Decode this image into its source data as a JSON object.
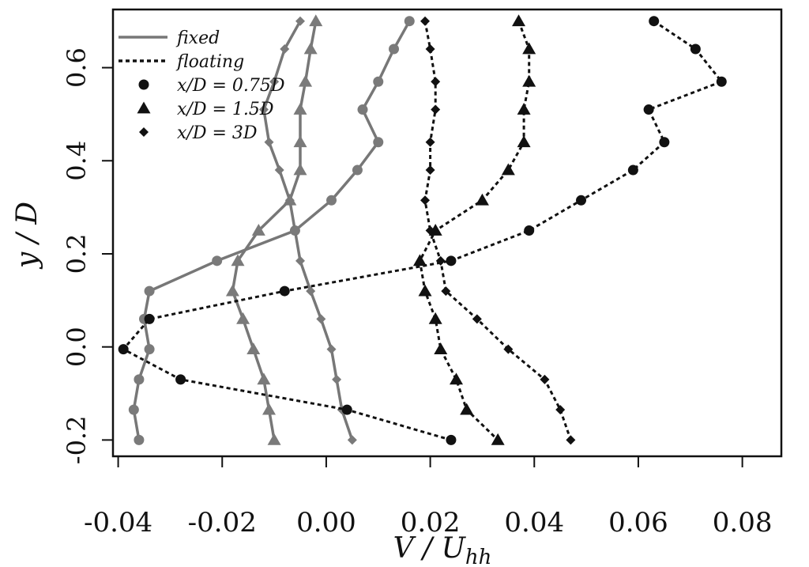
{
  "chart_data": {
    "type": "line",
    "xlabel": "V / U",
    "xlabel_sub": "hh",
    "ylabel": "y / D",
    "xlim": [
      -0.041,
      0.0875
    ],
    "ylim": [
      -0.235,
      0.725
    ],
    "x_ticks": [
      -0.04,
      -0.02,
      0.0,
      0.02,
      0.04,
      0.06,
      0.08
    ],
    "x_tick_labels": [
      "-0.04",
      "-0.02",
      "0.00",
      "0.02",
      "0.04",
      "0.06",
      "0.08"
    ],
    "y_ticks": [
      -0.2,
      0.0,
      0.2,
      0.4,
      0.6
    ],
    "y_tick_labels": [
      "-0.2",
      "0.0",
      "0.2",
      "0.4",
      "0.6"
    ],
    "grid": false,
    "legend_position": "top-left",
    "legend": [
      {
        "label": "fixed",
        "kind": "line",
        "style": "solid",
        "color": "#777777"
      },
      {
        "label": "floating",
        "kind": "line",
        "style": "dotted",
        "color": "#111111"
      },
      {
        "label": "x/D = 0.75D",
        "kind": "marker",
        "marker": "circle"
      },
      {
        "label": "x/D = 1.5D",
        "kind": "marker",
        "marker": "triangle"
      },
      {
        "label": "x/D = 3D",
        "kind": "marker",
        "marker": "diamond"
      }
    ],
    "series": [
      {
        "case": "fixed",
        "position": "x/D = 0.75D",
        "marker": "circle",
        "style": "solid",
        "color": "#777777",
        "points": [
          [
            0.016,
            0.7
          ],
          [
            0.013,
            0.64
          ],
          [
            0.01,
            0.57
          ],
          [
            0.007,
            0.51
          ],
          [
            0.01,
            0.44
          ],
          [
            0.006,
            0.38
          ],
          [
            0.001,
            0.315
          ],
          [
            -0.006,
            0.25
          ],
          [
            -0.021,
            0.185
          ],
          [
            -0.034,
            0.12
          ],
          [
            -0.035,
            0.06
          ],
          [
            -0.034,
            -0.005
          ],
          [
            -0.036,
            -0.07
          ],
          [
            -0.037,
            -0.135
          ],
          [
            -0.036,
            -0.2
          ]
        ]
      },
      {
        "case": "fixed",
        "position": "x/D = 1.5D",
        "marker": "triangle",
        "style": "solid",
        "color": "#777777",
        "points": [
          [
            -0.002,
            0.7
          ],
          [
            -0.003,
            0.64
          ],
          [
            -0.004,
            0.57
          ],
          [
            -0.005,
            0.51
          ],
          [
            -0.005,
            0.44
          ],
          [
            -0.005,
            0.38
          ],
          [
            -0.007,
            0.315
          ],
          [
            -0.013,
            0.25
          ],
          [
            -0.017,
            0.185
          ],
          [
            -0.018,
            0.12
          ],
          [
            -0.016,
            0.06
          ],
          [
            -0.014,
            -0.005
          ],
          [
            -0.012,
            -0.07
          ],
          [
            -0.011,
            -0.135
          ],
          [
            -0.01,
            -0.2
          ]
        ]
      },
      {
        "case": "fixed",
        "position": "x/D = 3D",
        "marker": "diamond",
        "style": "solid",
        "color": "#777777",
        "points": [
          [
            -0.005,
            0.7
          ],
          [
            -0.008,
            0.64
          ],
          [
            -0.01,
            0.57
          ],
          [
            -0.012,
            0.51
          ],
          [
            -0.011,
            0.44
          ],
          [
            -0.009,
            0.38
          ],
          [
            -0.007,
            0.315
          ],
          [
            -0.006,
            0.25
          ],
          [
            -0.005,
            0.185
          ],
          [
            -0.003,
            0.12
          ],
          [
            -0.001,
            0.06
          ],
          [
            0.001,
            -0.005
          ],
          [
            0.002,
            -0.07
          ],
          [
            0.003,
            -0.135
          ],
          [
            0.005,
            -0.2
          ]
        ]
      },
      {
        "case": "floating",
        "position": "x/D = 0.75D",
        "marker": "circle",
        "style": "dotted",
        "color": "#111111",
        "points": [
          [
            0.063,
            0.7
          ],
          [
            0.071,
            0.64
          ],
          [
            0.076,
            0.57
          ],
          [
            0.062,
            0.51
          ],
          [
            0.065,
            0.44
          ],
          [
            0.059,
            0.38
          ],
          [
            0.049,
            0.315
          ],
          [
            0.039,
            0.25
          ],
          [
            0.024,
            0.185
          ],
          [
            -0.008,
            0.12
          ],
          [
            -0.034,
            0.06
          ],
          [
            -0.039,
            -0.005
          ],
          [
            -0.028,
            -0.07
          ],
          [
            0.004,
            -0.135
          ],
          [
            0.024,
            -0.2
          ]
        ]
      },
      {
        "case": "floating",
        "position": "x/D = 1.5D",
        "marker": "triangle",
        "style": "dotted",
        "color": "#111111",
        "points": [
          [
            0.037,
            0.7
          ],
          [
            0.039,
            0.64
          ],
          [
            0.039,
            0.57
          ],
          [
            0.038,
            0.51
          ],
          [
            0.038,
            0.44
          ],
          [
            0.035,
            0.38
          ],
          [
            0.03,
            0.315
          ],
          [
            0.021,
            0.25
          ],
          [
            0.018,
            0.185
          ],
          [
            0.019,
            0.12
          ],
          [
            0.021,
            0.06
          ],
          [
            0.022,
            -0.005
          ],
          [
            0.025,
            -0.07
          ],
          [
            0.027,
            -0.135
          ],
          [
            0.033,
            -0.2
          ]
        ]
      },
      {
        "case": "floating",
        "position": "x/D = 3D",
        "marker": "diamond",
        "style": "dotted",
        "color": "#111111",
        "points": [
          [
            0.019,
            0.7
          ],
          [
            0.02,
            0.64
          ],
          [
            0.021,
            0.57
          ],
          [
            0.021,
            0.51
          ],
          [
            0.02,
            0.44
          ],
          [
            0.02,
            0.38
          ],
          [
            0.019,
            0.315
          ],
          [
            0.02,
            0.25
          ],
          [
            0.022,
            0.185
          ],
          [
            0.023,
            0.12
          ],
          [
            0.029,
            0.06
          ],
          [
            0.035,
            -0.005
          ],
          [
            0.042,
            -0.07
          ],
          [
            0.045,
            -0.135
          ],
          [
            0.047,
            -0.2
          ]
        ]
      }
    ]
  }
}
